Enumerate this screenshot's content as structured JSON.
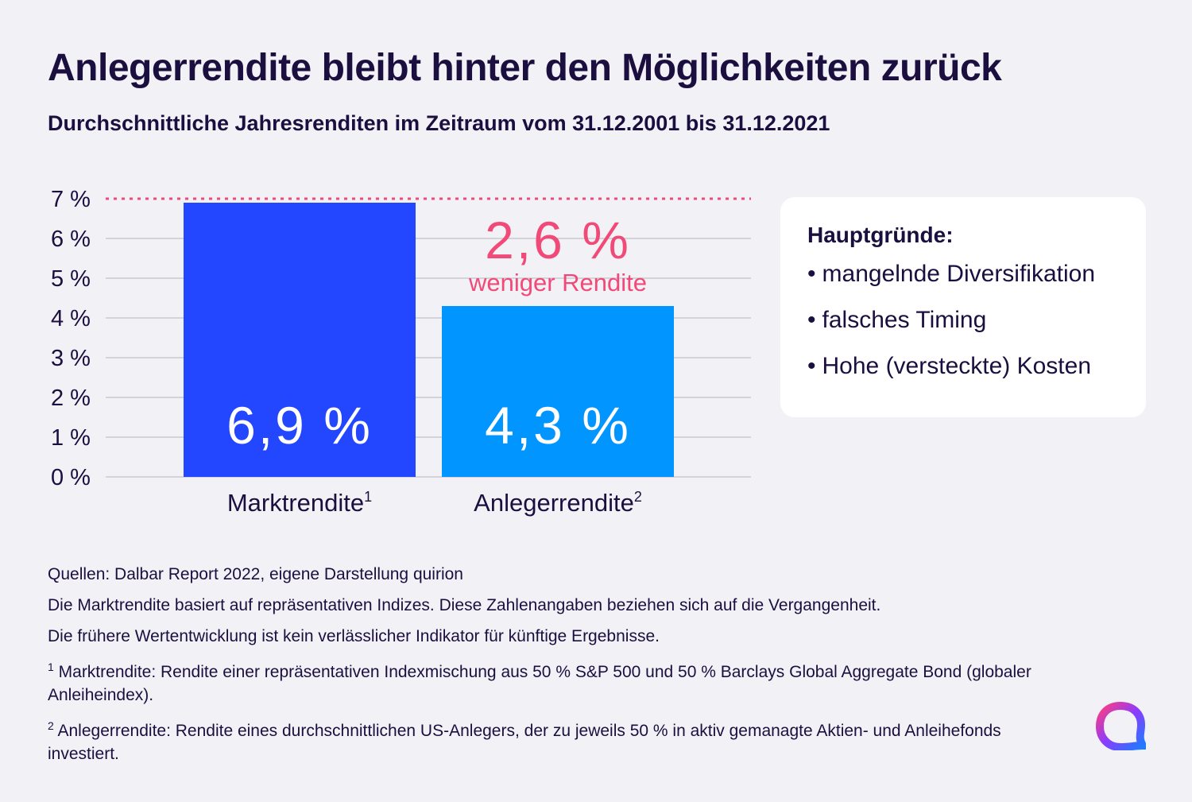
{
  "title": "Anlegerrendite bleibt hinter den Möglichkeiten zurück",
  "subtitle": "Durchschnittliche Jahresrenditen im Zeitraum vom 31.12.2001 bis 31.12.2021",
  "chart_data": {
    "type": "bar",
    "categories": [
      "Marktrendite",
      "Anlegerrendite"
    ],
    "category_superscripts": [
      "1",
      "2"
    ],
    "values": [
      6.9,
      4.3
    ],
    "value_labels": [
      "6,9 %",
      "4,3 %"
    ],
    "bar_colors": [
      "#2347ff",
      "#0095ff"
    ],
    "ylim": [
      0,
      7
    ],
    "yticks": [
      0,
      1,
      2,
      3,
      4,
      5,
      6,
      7
    ],
    "ytick_labels": [
      "0 %",
      "1 %",
      "2 %",
      "3 %",
      "4 %",
      "5 %",
      "6 %",
      "7 %"
    ],
    "grid": true,
    "reference_line": {
      "value": 6.9,
      "color": "#f24a78",
      "style": "dotted"
    },
    "difference_annotation": {
      "value_label": "2,6 %",
      "text": "weniger Rendite",
      "color": "#f24a78"
    }
  },
  "reasons": {
    "title": "Hauptgründe:",
    "items": [
      "mangelnde Diversifikation",
      "falsches Timing",
      "Hohe (versteckte) Kosten"
    ]
  },
  "footer": {
    "sources": "Quellen: Dalbar Report 2022, eigene Darstellung quirion",
    "note1": "Die Marktrendite basiert auf repräsentativen Indizes. Diese Zahlenangaben beziehen sich auf die Vergangenheit.",
    "note2": "Die frühere Wertentwicklung ist kein verlässlicher Indikator für künftige Ergebnisse.",
    "footnote1_mark": "1",
    "footnote1": "Marktrendite: Rendite einer repräsentativen Indexmischung aus 50 % S&P 500 und 50 % Barclays Global Aggregate Bond (globaler Anleiheindex).",
    "footnote2_mark": "2",
    "footnote2": "Anlegerrendite: Rendite eines durchschnittlichen US-Anlegers, der zu jeweils 50 % in aktiv gemanagte Aktien- und Anleihefonds investiert."
  },
  "colors": {
    "text": "#1b0f40",
    "background": "#f2f1f6",
    "accent_pink": "#f24a78",
    "bar_market": "#2347ff",
    "bar_investor": "#0095ff"
  },
  "logo_icon": "quirion-logo-icon"
}
